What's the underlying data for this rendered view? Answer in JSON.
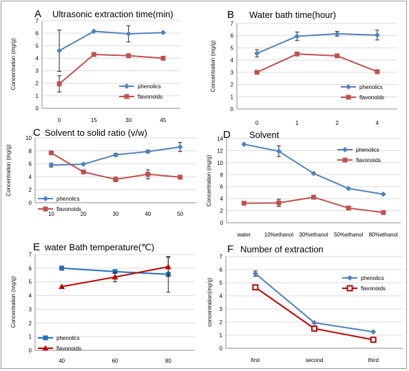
{
  "figure": {
    "border_color": "#9a9a9a"
  },
  "chart_data": [
    {
      "letter": "A",
      "type": "line",
      "title": "Ultrasonic extraction time(min)",
      "ylabel": "Concentration (mg/g)",
      "categories": [
        "0",
        "15",
        "30",
        "45"
      ],
      "ylim": [
        0,
        7
      ],
      "yticks": [
        "0",
        "1",
        "2",
        "3",
        "4",
        "5",
        "6",
        "7"
      ],
      "grid": true,
      "legend_position": "bottom-right",
      "series": [
        {
          "name": "phenolics",
          "color": "#4f81bd",
          "marker": "diamond",
          "values": [
            4.6,
            6.15,
            5.95,
            6.05
          ],
          "errors": [
            1.65,
            0,
            0.65,
            0
          ]
        },
        {
          "name": "flavonoids",
          "color": "#c0504d",
          "marker": "square",
          "values": [
            1.95,
            4.3,
            4.2,
            4.0
          ],
          "errors": [
            0.65,
            0,
            0,
            0
          ]
        }
      ]
    },
    {
      "letter": "B",
      "type": "line",
      "title": "Water bath time(hour)",
      "ylabel": "Concentration (mg/g)",
      "categories": [
        "0",
        "1",
        "2",
        "4"
      ],
      "ylim": [
        0,
        7
      ],
      "yticks": [
        "0",
        "1",
        "2",
        "3",
        "4",
        "5",
        "6",
        "7"
      ],
      "grid": true,
      "legend_position": "bottom-right",
      "series": [
        {
          "name": "phenolics",
          "color": "#4f81bd",
          "marker": "diamond",
          "values": [
            4.55,
            5.95,
            6.15,
            6.05
          ],
          "errors": [
            0.3,
            0.35,
            0.2,
            0.4
          ]
        },
        {
          "name": "flavonoids",
          "color": "#c0504d",
          "marker": "square",
          "values": [
            3.0,
            4.5,
            4.35,
            3.05
          ],
          "errors": [
            0,
            0,
            0,
            0
          ]
        }
      ]
    },
    {
      "letter": "C",
      "type": "line",
      "title": "Solvent to solid ratio (v/w)",
      "ylabel": "Concentration (mg/g)",
      "categories": [
        "10",
        "20",
        "30",
        "40",
        "50"
      ],
      "ylim": [
        0,
        10
      ],
      "yticks": [
        "0",
        "2",
        "4",
        "6",
        "8",
        "10"
      ],
      "grid": true,
      "legend_position": "bottom-left",
      "series": [
        {
          "name": "phenolics",
          "color": "#4f81bd",
          "marker": "diamond",
          "values": [
            5.8,
            5.95,
            7.4,
            7.9,
            8.6
          ],
          "errors": [
            0.3,
            0,
            0.2,
            0.2,
            0.7
          ]
        },
        {
          "name": "flavonoids",
          "color": "#c0504d",
          "marker": "square",
          "values": [
            7.7,
            4.75,
            3.6,
            4.4,
            3.95
          ],
          "errors": [
            0,
            0.2,
            0.35,
            0.7,
            0
          ]
        }
      ]
    },
    {
      "letter": "D",
      "type": "line",
      "title": "Solvent",
      "ylabel": "Concentration (mg/g)",
      "categories": [
        "water",
        "10%ethanol",
        "30%ethanol",
        "50%ethanol",
        "80%ethanol"
      ],
      "ylim": [
        0,
        14
      ],
      "yticks": [
        "0",
        "2",
        "4",
        "6",
        "8",
        "10",
        "12",
        "14"
      ],
      "grid": true,
      "legend_position": "top-right",
      "series": [
        {
          "name": "phenolics",
          "color": "#4f81bd",
          "marker": "diamond",
          "values": [
            13.05,
            11.9,
            8.2,
            5.7,
            4.75
          ],
          "errors": [
            0,
            0.9,
            0,
            0,
            0
          ]
        },
        {
          "name": "flavonoids",
          "color": "#c0504d",
          "marker": "square",
          "values": [
            3.25,
            3.3,
            4.25,
            2.45,
            1.7
          ],
          "errors": [
            0,
            0.6,
            0,
            0,
            0
          ]
        }
      ]
    },
    {
      "letter": "E",
      "type": "line",
      "title": "water Bath temperature(℃)",
      "ylabel": "Concentration (mg/g)",
      "categories": [
        "40",
        "60",
        "80"
      ],
      "ylim": [
        0,
        7
      ],
      "yticks": [
        "0",
        "1",
        "2",
        "3",
        "4",
        "5",
        "6",
        "7"
      ],
      "grid": true,
      "legend_position": "bottom-left",
      "series": [
        {
          "name": "phenolics",
          "color": "#1f6fbf",
          "marker": "square",
          "values": [
            6.0,
            5.75,
            5.55
          ],
          "errors": [
            0.15,
            0,
            1.3
          ]
        },
        {
          "name": "flavonoids",
          "color": "#c00000",
          "marker": "triangle",
          "values": [
            4.65,
            5.35,
            6.1
          ],
          "errors": [
            0,
            0.35,
            0.7
          ]
        }
      ]
    },
    {
      "letter": "F",
      "type": "line",
      "title": "Number of extraction",
      "ylabel": "concentration(mg/g)",
      "categories": [
        "first",
        "second",
        "third"
      ],
      "ylim": [
        0,
        7
      ],
      "yticks": [
        "0",
        "1",
        "2",
        "3",
        "4",
        "5",
        "6",
        "7"
      ],
      "grid": true,
      "legend_position": "top-right",
      "series": [
        {
          "name": "phenolics",
          "color": "#4f81bd",
          "marker": "diamond",
          "values": [
            5.7,
            1.95,
            1.25
          ],
          "errors": [
            0.2,
            0,
            0
          ]
        },
        {
          "name": "flavonoids",
          "color": "#c00000",
          "marker": "open-square",
          "values": [
            4.65,
            1.5,
            0.65
          ],
          "errors": [
            0,
            0,
            0
          ]
        }
      ]
    }
  ]
}
